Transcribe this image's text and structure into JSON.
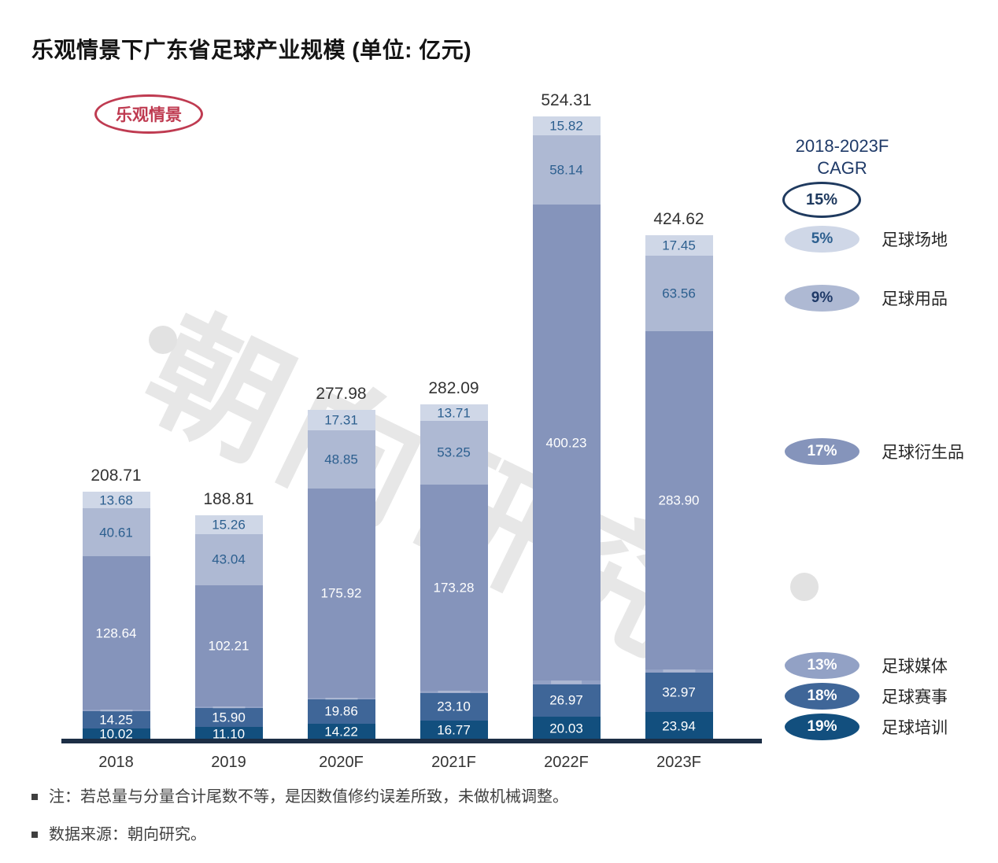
{
  "title": "乐观情景下广东省足球产业规模 (单位: 亿元)",
  "badge_label": "乐观情景",
  "watermark_text": "朝向研究",
  "legend": {
    "heading_line1": "2018-2023F",
    "heading_line2": "CAGR"
  },
  "notes": [
    {
      "text": "注：若总量与分量合计尾数不等，是因数值修约误差所致，未做机械调整。"
    },
    {
      "text": "数据来源：朝向研究。"
    }
  ],
  "chart_data": {
    "type": "bar",
    "subtype": "stacked",
    "title": "乐观情景下广东省足球产业规模",
    "unit": "亿元",
    "categories": [
      "2018",
      "2019",
      "2020F",
      "2021F",
      "2022F",
      "2023F"
    ],
    "totals": [
      208.71,
      188.81,
      277.98,
      282.09,
      524.31,
      424.62
    ],
    "total_cagr": "15%",
    "series": [
      {
        "name": "足球培训",
        "cagr": "19%",
        "color": "#124f7e",
        "values": [
          10.02,
          11.1,
          14.22,
          16.77,
          20.03,
          23.94
        ]
      },
      {
        "name": "足球赛事",
        "cagr": "18%",
        "color": "#3f6698",
        "values": [
          14.25,
          15.9,
          19.86,
          23.1,
          26.97,
          32.97
        ]
      },
      {
        "name": "足球媒体",
        "cagr": "13%",
        "color": "#92a1c5",
        "values": [
          1.51,
          1.3,
          1.83,
          1.98,
          3.11,
          2.81
        ]
      },
      {
        "name": "足球衍生品",
        "cagr": "17%",
        "color": "#8594bb",
        "values": [
          128.64,
          102.21,
          175.92,
          173.28,
          400.23,
          283.9
        ]
      },
      {
        "name": "足球用品",
        "cagr": "9%",
        "color": "#aeb9d3",
        "values": [
          40.61,
          43.04,
          48.85,
          53.25,
          58.14,
          63.56
        ]
      },
      {
        "name": "足球场地",
        "cagr": "5%",
        "color": "#cfd7e7",
        "values": [
          13.68,
          15.26,
          17.31,
          13.71,
          15.82,
          17.45
        ]
      }
    ],
    "ylim": [
      0,
      550
    ],
    "grid": false,
    "legend_position": "right"
  }
}
